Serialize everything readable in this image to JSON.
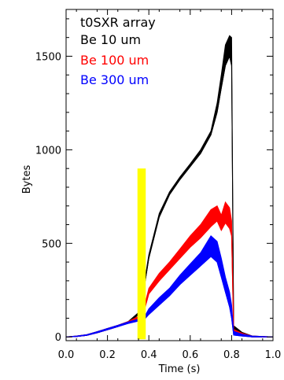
{
  "chart_data": {
    "type": "line",
    "title": "",
    "xlabel": "Time (s)",
    "ylabel": "Bytes",
    "xlim": [
      0.0,
      1.0
    ],
    "ylim": [
      -20,
      1750
    ],
    "x_ticks": [
      0.0,
      0.2,
      0.4,
      0.6,
      0.8,
      1.0
    ],
    "x_tick_labels": [
      "0.0",
      "0.2",
      "0.4",
      "0.6",
      "0.8",
      "1.0"
    ],
    "y_ticks": [
      0,
      500,
      1000,
      1500
    ],
    "y_tick_labels": [
      "0",
      "500",
      "1000",
      "1500"
    ],
    "legend_title": "t0SXR array",
    "legend_position": "top-left",
    "grid": false,
    "series": [
      {
        "name": "Be 10 um",
        "color": "#000000",
        "x": [
          0.0,
          0.05,
          0.1,
          0.15,
          0.2,
          0.25,
          0.3,
          0.35,
          0.38,
          0.4,
          0.45,
          0.5,
          0.55,
          0.6,
          0.65,
          0.7,
          0.73,
          0.75,
          0.77,
          0.79,
          0.8,
          0.81,
          0.85,
          0.9,
          1.0
        ],
        "y": [
          0,
          2,
          8,
          22,
          38,
          55,
          75,
          120,
          280,
          420,
          640,
          760,
          840,
          910,
          980,
          1080,
          1200,
          1330,
          1450,
          1500,
          1450,
          30,
          10,
          0,
          0
        ],
        "upper": [
          0,
          5,
          12,
          28,
          45,
          62,
          82,
          130,
          300,
          440,
          660,
          775,
          855,
          925,
          1000,
          1100,
          1250,
          1400,
          1560,
          1610,
          1600,
          60,
          25,
          5,
          0
        ]
      },
      {
        "name": "Be 100 um",
        "color": "#ff0000",
        "x": [
          0.0,
          0.05,
          0.1,
          0.15,
          0.2,
          0.25,
          0.3,
          0.35,
          0.38,
          0.4,
          0.45,
          0.5,
          0.55,
          0.6,
          0.65,
          0.7,
          0.73,
          0.75,
          0.77,
          0.79,
          0.8,
          0.81,
          0.85,
          0.9,
          1.0
        ],
        "y": [
          0,
          2,
          8,
          22,
          38,
          55,
          75,
          100,
          150,
          230,
          300,
          360,
          420,
          480,
          530,
          590,
          620,
          570,
          610,
          580,
          540,
          20,
          8,
          0,
          0
        ],
        "upper": [
          0,
          5,
          12,
          28,
          45,
          62,
          82,
          110,
          170,
          260,
          340,
          400,
          470,
          540,
          600,
          680,
          700,
          650,
          720,
          690,
          620,
          40,
          20,
          5,
          0
        ]
      },
      {
        "name": "Be 300 um",
        "color": "#0000ff",
        "x": [
          0.0,
          0.05,
          0.1,
          0.15,
          0.2,
          0.25,
          0.3,
          0.35,
          0.38,
          0.4,
          0.45,
          0.5,
          0.55,
          0.6,
          0.65,
          0.7,
          0.73,
          0.75,
          0.77,
          0.79,
          0.8,
          0.81,
          0.85,
          0.9,
          1.0
        ],
        "y": [
          0,
          2,
          8,
          22,
          38,
          55,
          72,
          85,
          95,
          120,
          170,
          220,
          280,
          330,
          380,
          430,
          400,
          320,
          240,
          160,
          100,
          10,
          5,
          0,
          0
        ],
        "upper": [
          0,
          5,
          12,
          28,
          45,
          62,
          80,
          95,
          110,
          150,
          210,
          260,
          330,
          390,
          450,
          540,
          510,
          420,
          320,
          240,
          170,
          30,
          15,
          5,
          0
        ]
      }
    ],
    "highlight_band": {
      "x_start": 0.345,
      "x_end": 0.385,
      "y_top": 900,
      "color": "#ffff00"
    }
  }
}
